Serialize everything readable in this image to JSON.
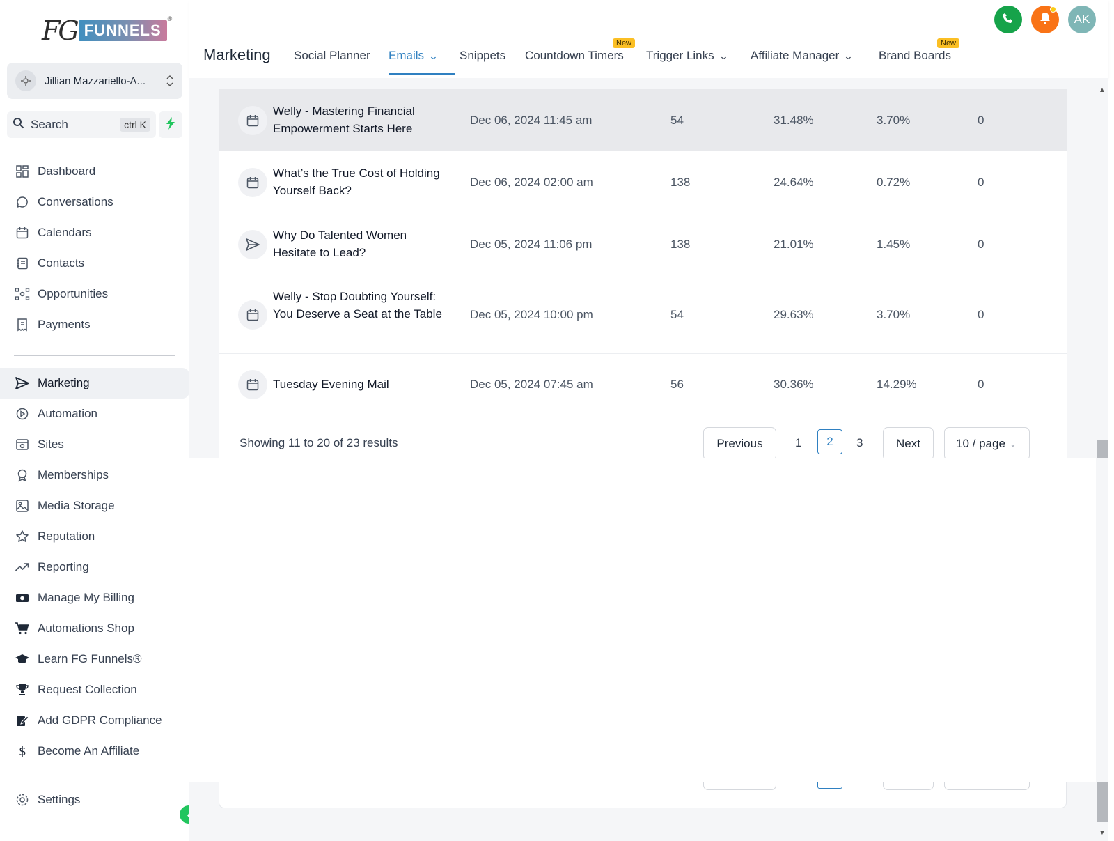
{
  "brand": {
    "logo_fg": "FG",
    "logo_text": "FUNNELS",
    "logo_reg": "®"
  },
  "account": {
    "name": "Jillian Mazzariello-A..."
  },
  "search": {
    "label": "Search",
    "shortcut": "ctrl K"
  },
  "sidebar": {
    "items": [
      {
        "label": "Dashboard",
        "icon": "dashboard-icon"
      },
      {
        "label": "Conversations",
        "icon": "chat-icon"
      },
      {
        "label": "Calendars",
        "icon": "calendar-icon"
      },
      {
        "label": "Contacts",
        "icon": "contacts-icon"
      },
      {
        "label": "Opportunities",
        "icon": "opportunities-icon"
      },
      {
        "label": "Payments",
        "icon": "payments-icon"
      },
      {
        "label": "Marketing",
        "icon": "send-icon",
        "active": true
      },
      {
        "label": "Automation",
        "icon": "automation-icon"
      },
      {
        "label": "Sites",
        "icon": "sites-icon"
      },
      {
        "label": "Memberships",
        "icon": "membership-icon"
      },
      {
        "label": "Media Storage",
        "icon": "image-icon"
      },
      {
        "label": "Reputation",
        "icon": "star-icon"
      },
      {
        "label": "Reporting",
        "icon": "trend-icon"
      },
      {
        "label": "Manage My Billing",
        "icon": "billing-icon"
      },
      {
        "label": "Automations Shop",
        "icon": "cart-icon"
      },
      {
        "label": "Learn FG Funnels®",
        "icon": "graduation-cap-icon"
      },
      {
        "label": "Request Collection",
        "icon": "trophy-icon"
      },
      {
        "label": "Add GDPR Compliance",
        "icon": "edit-icon"
      },
      {
        "label": "Become An Affiliate",
        "icon": "dollar-icon"
      }
    ],
    "settings_label": "Settings"
  },
  "header": {
    "title": "Marketing",
    "tabs": [
      {
        "label": "Social Planner"
      },
      {
        "label": "Emails",
        "active": true,
        "dropdown": true
      },
      {
        "label": "Snippets"
      },
      {
        "label": "Countdown Timers",
        "badge": "New"
      },
      {
        "label": "Trigger Links",
        "dropdown": true
      },
      {
        "label": "Affiliate Manager",
        "dropdown": true
      },
      {
        "label": "Brand Boards",
        "badge": "New"
      }
    ],
    "avatar_initials": "AK"
  },
  "colors": {
    "accent": "#2f80c1",
    "phone": "#16a34a",
    "bell": "#f97316",
    "avatar": "#7fb6b6",
    "badge": "#fbbf24"
  },
  "emails": [
    {
      "name": "Welly - Mastering Financial Empowerment Starts Here",
      "date": "Dec 06, 2024 11:45 am",
      "sent": "54",
      "open_rate": "31.48%",
      "click_rate": "3.70%",
      "extra": "0",
      "icon": "calendar-icon"
    },
    {
      "name": "What’s the True Cost of Holding Yourself Back?",
      "date": "Dec 06, 2024 02:00 am",
      "sent": "138",
      "open_rate": "24.64%",
      "click_rate": "0.72%",
      "extra": "0",
      "icon": "calendar-icon"
    },
    {
      "name": "Why Do Talented Women Hesitate to Lead?",
      "date": "Dec 05, 2024 11:06 pm",
      "sent": "138",
      "open_rate": "21.01%",
      "click_rate": "1.45%",
      "extra": "0",
      "icon": "send-icon"
    },
    {
      "name": "Welly - Stop Doubting Yourself: You Deserve a Seat at the Table",
      "date": "Dec 05, 2024 10:00 pm",
      "sent": "54",
      "open_rate": "29.63%",
      "click_rate": "3.70%",
      "extra": "0",
      "icon": "calendar-icon"
    },
    {
      "name": "Tuesday Evening Mail",
      "date": "Dec 05, 2024 07:45 am",
      "sent": "56",
      "open_rate": "30.36%",
      "click_rate": "14.29%",
      "extra": "0",
      "icon": "calendar-icon"
    }
  ],
  "pagination": {
    "summary": "Showing 11 to 20 of 23 results",
    "previous": "Previous",
    "next": "Next",
    "pages": [
      "1",
      "2",
      "3"
    ],
    "current_page": "2",
    "page_size": "10 / page"
  }
}
